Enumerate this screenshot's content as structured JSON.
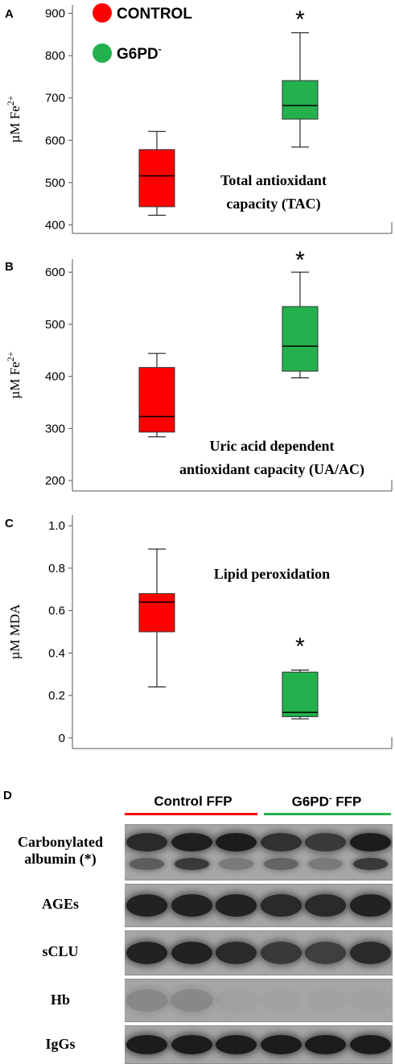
{
  "legend": {
    "items": [
      {
        "label": "CONTROL",
        "color": "#ff0000"
      },
      {
        "label": "G6PD",
        "superscript": "-",
        "color": "#22b14c"
      }
    ]
  },
  "chart_data": [
    {
      "type": "box",
      "panel": "A",
      "ylabel": "µM Fe",
      "ylabel_superscript": "2+",
      "ylim": [
        380,
        920
      ],
      "yticks": [
        400,
        500,
        600,
        700,
        800,
        900
      ],
      "annotation": [
        "Total antioxidant",
        "capacity (TAC)"
      ],
      "significance": "*",
      "series": [
        {
          "name": "CONTROL",
          "color": "#ff0000",
          "min": 423,
          "q1": 443,
          "median": 516,
          "q3": 578,
          "max": 621
        },
        {
          "name": "G6PD-",
          "color": "#22b14c",
          "min": 584,
          "q1": 650,
          "median": 682,
          "q3": 741,
          "max": 854
        }
      ]
    },
    {
      "type": "box",
      "panel": "B",
      "ylabel": "µM Fe",
      "ylabel_superscript": "2+",
      "ylim": [
        180,
        625
      ],
      "yticks": [
        200,
        300,
        400,
        500,
        600
      ],
      "annotation": [
        "Uric acid dependent",
        "antioxidant capacity (UA/AC)"
      ],
      "significance": "*",
      "series": [
        {
          "name": "CONTROL",
          "color": "#ff0000",
          "min": 284,
          "q1": 293,
          "median": 323,
          "q3": 417,
          "max": 444
        },
        {
          "name": "G6PD-",
          "color": "#22b14c",
          "min": 397,
          "q1": 410,
          "median": 458,
          "q3": 534,
          "max": 600
        }
      ]
    },
    {
      "type": "box",
      "panel": "C",
      "ylabel": "µM MDA",
      "ylim": [
        -0.05,
        1.05
      ],
      "yticks": [
        0,
        0.2,
        0.4,
        0.6,
        0.8,
        1.0
      ],
      "ytick_labels": [
        "0",
        "0.2",
        "0.4",
        "0.6",
        "0.8",
        "1.0"
      ],
      "annotation": [
        "Lipid peroxidation"
      ],
      "significance": "*",
      "series": [
        {
          "name": "CONTROL",
          "color": "#ff0000",
          "min": 0.24,
          "q1": 0.5,
          "median": 0.64,
          "q3": 0.68,
          "max": 0.89
        },
        {
          "name": "G6PD-",
          "color": "#22b14c",
          "min": 0.09,
          "q1": 0.1,
          "median": 0.12,
          "q3": 0.31,
          "max": 0.32
        }
      ]
    }
  ],
  "blot": {
    "panel": "D",
    "groups": [
      {
        "label": "Control FFP",
        "color": "#ff0000"
      },
      {
        "label": "G6PD",
        "superscript": "-",
        "label_suffix": " FFP",
        "color": "#22b14c"
      }
    ],
    "rows": [
      {
        "label_lines": [
          "Carbonylated",
          "albumin (*)"
        ],
        "intensity": [
          0.85,
          0.92,
          0.95,
          0.8,
          0.75,
          0.95
        ],
        "lower": [
          0.5,
          0.75,
          0.3,
          0.45,
          0.3,
          0.75
        ]
      },
      {
        "label_lines": [
          "AGEs"
        ],
        "intensity": [
          0.9,
          0.9,
          0.9,
          0.85,
          0.85,
          0.9
        ]
      },
      {
        "label_lines": [
          "sCLU"
        ],
        "intensity": [
          0.9,
          0.9,
          0.85,
          0.75,
          0.7,
          0.85
        ]
      },
      {
        "label_lines": [
          "Hb"
        ],
        "intensity": [
          0.2,
          0.2,
          0.04,
          0.02,
          0.02,
          0.02
        ]
      },
      {
        "label_lines": [
          "IgGs"
        ],
        "intensity": [
          0.95,
          0.95,
          0.95,
          0.95,
          0.95,
          0.95
        ]
      }
    ]
  }
}
